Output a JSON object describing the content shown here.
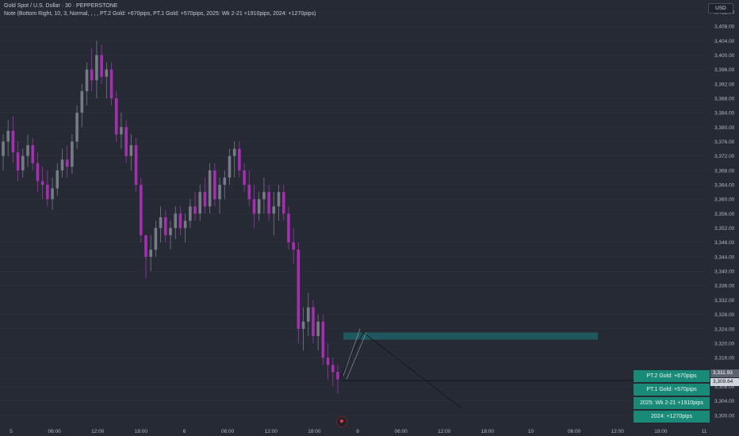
{
  "header": {
    "title": "Gold Spot / U.S. Dollar · 30 · PEPPERSTONE",
    "note": "Note (Bottom Right, 10, 3, Normal, , , , PT.2 Gold: +670pips, PT.1 Gold: +570pips, 2025: Wk 2-21 +1910pips, 2024: +1270pips)"
  },
  "currency_button": "USD",
  "price_tags": {
    "upper": "3,311.93",
    "current": "3,309.64"
  },
  "stats_table": {
    "rows": [
      "PT.2 Gold: +670pips",
      "PT.1 Gold: +570pips",
      "2025: Wk 2-21 +1910pips",
      "2024: +1270pips"
    ]
  },
  "logo": {
    "icon": "tradingview-logo-icon"
  },
  "colors": {
    "background": "#262a35",
    "bull_candle": "#787b86",
    "bear_candle": "#a52fb0",
    "zone": "#1f5c63",
    "stats_bg": "#1a8a78"
  },
  "chart_data": {
    "type": "candlestick",
    "y_axis": {
      "range": [
        3298,
        3412
      ],
      "tick_labels": [
        "3,412.00",
        "3,408.00",
        "3,404.00",
        "3,400.00",
        "3,396.00",
        "3,392.00",
        "3,388.00",
        "3,384.00",
        "3,380.00",
        "3,376.00",
        "3,372.00",
        "3,368.00",
        "3,364.00",
        "3,360.00",
        "3,356.00",
        "3,352.00",
        "3,348.00",
        "3,344.00",
        "3,340.00",
        "3,336.00",
        "3,332.00",
        "3,328.00",
        "3,324.00",
        "3,320.00",
        "3,316.00",
        "3,312.00",
        "3,308.00",
        "3,304.00",
        "3,300.00"
      ]
    },
    "x_axis": {
      "tick_labels": [
        "5",
        "06:00",
        "12:00",
        "18:00",
        "6",
        "06:00",
        "12:00",
        "18:00",
        "8",
        "06:00",
        "12:00",
        "18:00",
        "10",
        "06:00",
        "12:00",
        "18:00",
        "11"
      ]
    },
    "candles": [
      [
        3372,
        3378,
        3368,
        3376
      ],
      [
        3376,
        3382,
        3372,
        3379
      ],
      [
        3379,
        3383,
        3370,
        3373
      ],
      [
        3373,
        3376,
        3365,
        3368
      ],
      [
        3368,
        3374,
        3366,
        3372
      ],
      [
        3372,
        3378,
        3369,
        3375
      ],
      [
        3375,
        3377,
        3368,
        3370
      ],
      [
        3370,
        3373,
        3362,
        3365
      ],
      [
        3365,
        3369,
        3360,
        3364
      ],
      [
        3364,
        3368,
        3358,
        3360
      ],
      [
        3360,
        3366,
        3357,
        3363
      ],
      [
        3363,
        3370,
        3361,
        3368
      ],
      [
        3368,
        3374,
        3366,
        3371
      ],
      [
        3371,
        3375,
        3366,
        3369
      ],
      [
        3369,
        3378,
        3367,
        3376
      ],
      [
        3376,
        3386,
        3374,
        3384
      ],
      [
        3384,
        3392,
        3380,
        3390
      ],
      [
        3390,
        3398,
        3386,
        3396
      ],
      [
        3396,
        3402,
        3390,
        3393
      ],
      [
        3393,
        3404,
        3388,
        3400
      ],
      [
        3400,
        3403,
        3392,
        3394
      ],
      [
        3394,
        3398,
        3388,
        3396
      ],
      [
        3396,
        3398,
        3386,
        3388
      ],
      [
        3388,
        3390,
        3376,
        3378
      ],
      [
        3378,
        3384,
        3374,
        3380
      ],
      [
        3380,
        3382,
        3370,
        3372
      ],
      [
        3372,
        3378,
        3368,
        3375
      ],
      [
        3375,
        3377,
        3362,
        3364
      ],
      [
        3364,
        3366,
        3348,
        3350
      ],
      [
        3350,
        3350,
        3338,
        3344
      ],
      [
        3344,
        3350,
        3340,
        3346
      ],
      [
        3346,
        3354,
        3344,
        3352
      ],
      [
        3352,
        3358,
        3348,
        3355
      ],
      [
        3355,
        3357,
        3348,
        3350
      ],
      [
        3350,
        3354,
        3346,
        3352
      ],
      [
        3352,
        3358,
        3349,
        3356
      ],
      [
        3356,
        3358,
        3350,
        3352
      ],
      [
        3352,
        3356,
        3348,
        3354
      ],
      [
        3354,
        3360,
        3352,
        3358
      ],
      [
        3358,
        3362,
        3354,
        3356
      ],
      [
        3356,
        3364,
        3354,
        3362
      ],
      [
        3362,
        3366,
        3356,
        3358
      ],
      [
        3358,
        3370,
        3356,
        3368
      ],
      [
        3368,
        3370,
        3358,
        3360
      ],
      [
        3360,
        3366,
        3356,
        3364
      ],
      [
        3364,
        3368,
        3360,
        3366
      ],
      [
        3366,
        3374,
        3364,
        3372
      ],
      [
        3372,
        3376,
        3366,
        3374
      ],
      [
        3374,
        3376,
        3366,
        3368
      ],
      [
        3368,
        3370,
        3362,
        3364
      ],
      [
        3364,
        3368,
        3358,
        3360
      ],
      [
        3360,
        3364,
        3352,
        3356
      ],
      [
        3356,
        3362,
        3354,
        3360
      ],
      [
        3360,
        3366,
        3356,
        3362
      ],
      [
        3362,
        3364,
        3354,
        3356
      ],
      [
        3356,
        3362,
        3350,
        3358
      ],
      [
        3358,
        3364,
        3354,
        3362
      ],
      [
        3362,
        3364,
        3354,
        3356
      ],
      [
        3356,
        3358,
        3346,
        3348
      ],
      [
        3348,
        3352,
        3342,
        3346
      ],
      [
        3346,
        3348,
        3320,
        3324
      ],
      [
        3324,
        3330,
        3318,
        3326
      ],
      [
        3326,
        3334,
        3322,
        3330
      ],
      [
        3330,
        3332,
        3320,
        3322
      ],
      [
        3322,
        3328,
        3318,
        3326
      ],
      [
        3326,
        3328,
        3314,
        3316
      ],
      [
        3316,
        3320,
        3310,
        3314
      ],
      [
        3314,
        3316,
        3308,
        3312
      ],
      [
        3312,
        3314,
        3306,
        3310
      ]
    ],
    "annotations": {
      "resistance_zone": [
        3321,
        3323
      ],
      "horizontal_line": 3309.64,
      "pattern_label": ""
    }
  }
}
